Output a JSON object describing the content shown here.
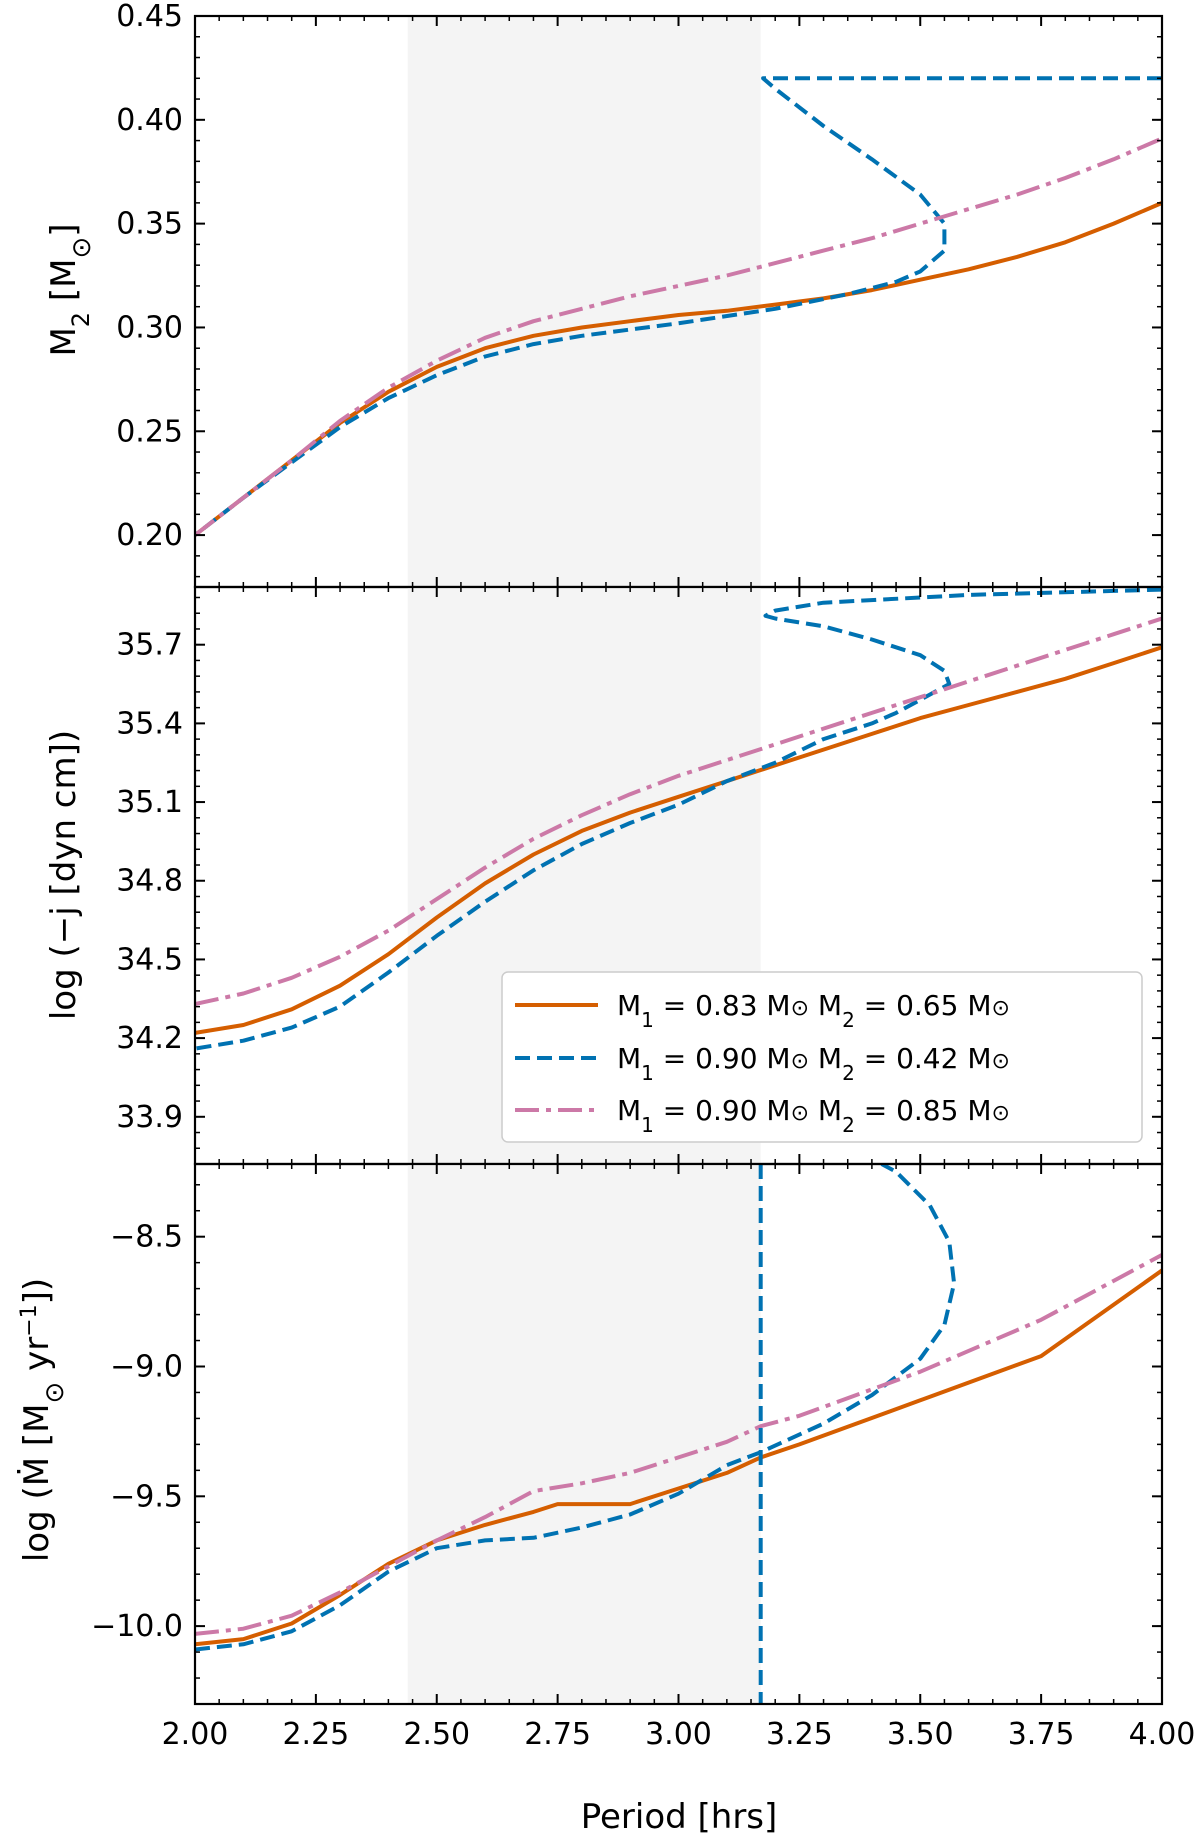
{
  "chart_data": {
    "type": "line",
    "shared_x": {
      "label": "Period [hrs]",
      "xlim": [
        2.0,
        4.0
      ],
      "ticks": [
        2.0,
        2.25,
        2.5,
        2.75,
        3.0,
        3.25,
        3.5,
        3.75,
        4.0
      ],
      "tick_labels": [
        "2.00",
        "2.25",
        "2.50",
        "2.75",
        "3.00",
        "3.25",
        "3.50",
        "3.75",
        "4.00"
      ]
    },
    "shaded_band": {
      "x": [
        2.44,
        3.17
      ],
      "color": "#f4f4f4"
    },
    "colors": {
      "s1": "#d55e00",
      "s2": "#0072b2",
      "s3": "#cc79a7"
    },
    "legend": {
      "location": "lower-right of middle panel",
      "entries": [
        {
          "pre": "M",
          "sub1": "1",
          "mid": " = 0.83 M",
          "sun1": "⊙",
          "m2": " M",
          "sub2": "2",
          "val2": " = 0.65 M",
          "sun2": "⊙"
        },
        {
          "pre": "M",
          "sub1": "1",
          "mid": " = 0.90 M",
          "sun1": "⊙",
          "m2": " M",
          "sub2": "2",
          "val2": " = 0.42 M",
          "sun2": "⊙"
        },
        {
          "pre": "M",
          "sub1": "1",
          "mid": " = 0.90 M",
          "sun1": "⊙",
          "m2": " M",
          "sub2": "2",
          "val2": " = 0.85 M",
          "sun2": "⊙"
        }
      ]
    },
    "panels": [
      {
        "id": "mass",
        "ylabel": {
          "a": "M",
          "sub": "2",
          "b": " [M",
          "sun": "⊙",
          "c": "]"
        },
        "ylim": [
          0.175,
          0.45
        ],
        "yticks": [
          0.2,
          0.25,
          0.3,
          0.35,
          0.4,
          0.45
        ],
        "ytick_labels": [
          "0.20",
          "0.25",
          "0.30",
          "0.35",
          "0.40",
          "0.45"
        ],
        "series": [
          {
            "name": "M1 = 0.83, M2 = 0.65",
            "style": "solid",
            "points": [
              [
                2.0,
                0.2
              ],
              [
                2.1,
                0.218
              ],
              [
                2.2,
                0.236
              ],
              [
                2.3,
                0.254
              ],
              [
                2.4,
                0.269
              ],
              [
                2.5,
                0.281
              ],
              [
                2.6,
                0.29
              ],
              [
                2.7,
                0.296
              ],
              [
                2.8,
                0.3
              ],
              [
                2.9,
                0.303
              ],
              [
                3.0,
                0.306
              ],
              [
                3.1,
                0.308
              ],
              [
                3.2,
                0.311
              ],
              [
                3.3,
                0.314
              ],
              [
                3.4,
                0.318
              ],
              [
                3.5,
                0.323
              ],
              [
                3.6,
                0.328
              ],
              [
                3.7,
                0.334
              ],
              [
                3.8,
                0.341
              ],
              [
                3.9,
                0.35
              ],
              [
                4.0,
                0.36
              ]
            ]
          },
          {
            "name": "M1 = 0.90, M2 = 0.42",
            "style": "dashed",
            "points": [
              [
                4.0,
                0.42
              ],
              [
                3.175,
                0.42
              ],
              [
                3.2,
                0.415
              ],
              [
                3.3,
                0.397
              ],
              [
                3.4,
                0.381
              ],
              [
                3.5,
                0.364
              ],
              [
                3.55,
                0.35
              ],
              [
                3.55,
                0.337
              ],
              [
                3.5,
                0.327
              ],
              [
                3.45,
                0.322
              ],
              [
                3.35,
                0.316
              ],
              [
                3.2,
                0.309
              ],
              [
                3.0,
                0.302
              ],
              [
                2.8,
                0.296
              ],
              [
                2.7,
                0.292
              ],
              [
                2.6,
                0.286
              ],
              [
                2.5,
                0.277
              ],
              [
                2.4,
                0.266
              ],
              [
                2.3,
                0.252
              ],
              [
                2.2,
                0.235
              ],
              [
                2.1,
                0.218
              ],
              [
                2.0,
                0.2
              ]
            ]
          },
          {
            "name": "M1 = 0.90, M2 = 0.85",
            "style": "dashdot",
            "points": [
              [
                2.0,
                0.2
              ],
              [
                2.1,
                0.218
              ],
              [
                2.2,
                0.236
              ],
              [
                2.3,
                0.255
              ],
              [
                2.4,
                0.271
              ],
              [
                2.5,
                0.284
              ],
              [
                2.6,
                0.295
              ],
              [
                2.7,
                0.303
              ],
              [
                2.8,
                0.309
              ],
              [
                2.9,
                0.315
              ],
              [
                3.0,
                0.32
              ],
              [
                3.1,
                0.325
              ],
              [
                3.2,
                0.331
              ],
              [
                3.3,
                0.337
              ],
              [
                3.4,
                0.343
              ],
              [
                3.5,
                0.35
              ],
              [
                3.6,
                0.357
              ],
              [
                3.7,
                0.364
              ],
              [
                3.8,
                0.372
              ],
              [
                3.9,
                0.381
              ],
              [
                4.0,
                0.391
              ]
            ]
          }
        ]
      },
      {
        "id": "torque",
        "ylabel": {
          "text": "log (−j̇ [dyn cm])"
        },
        "ylim": [
          33.72,
          35.92
        ],
        "yticks": [
          33.9,
          34.2,
          34.5,
          34.8,
          35.1,
          35.4,
          35.7
        ],
        "ytick_labels": [
          "33.9",
          "34.2",
          "34.5",
          "34.8",
          "35.1",
          "35.4",
          "35.7"
        ],
        "series": [
          {
            "name": "M1 = 0.83, M2 = 0.65",
            "style": "solid",
            "points": [
              [
                2.0,
                34.22
              ],
              [
                2.1,
                34.25
              ],
              [
                2.2,
                34.31
              ],
              [
                2.3,
                34.4
              ],
              [
                2.4,
                34.52
              ],
              [
                2.5,
                34.66
              ],
              [
                2.6,
                34.79
              ],
              [
                2.7,
                34.9
              ],
              [
                2.8,
                34.99
              ],
              [
                2.9,
                35.06
              ],
              [
                3.0,
                35.12
              ],
              [
                3.1,
                35.18
              ],
              [
                3.2,
                35.24
              ],
              [
                3.3,
                35.3
              ],
              [
                3.4,
                35.36
              ],
              [
                3.5,
                35.42
              ],
              [
                3.6,
                35.47
              ],
              [
                3.7,
                35.52
              ],
              [
                3.8,
                35.57
              ],
              [
                3.9,
                35.63
              ],
              [
                4.0,
                35.69
              ]
            ]
          },
          {
            "name": "M1 = 0.90, M2 = 0.42",
            "style": "dashed",
            "points": [
              [
                4.0,
                35.91
              ],
              [
                3.6,
                35.89
              ],
              [
                3.3,
                35.86
              ],
              [
                3.2,
                35.83
              ],
              [
                3.18,
                35.81
              ],
              [
                3.2,
                35.8
              ],
              [
                3.3,
                35.77
              ],
              [
                3.4,
                35.72
              ],
              [
                3.5,
                35.66
              ],
              [
                3.55,
                35.6
              ],
              [
                3.56,
                35.55
              ],
              [
                3.5,
                35.49
              ],
              [
                3.45,
                35.44
              ],
              [
                3.4,
                35.4
              ],
              [
                3.3,
                35.34
              ],
              [
                3.2,
                35.25
              ],
              [
                3.1,
                35.18
              ],
              [
                3.0,
                35.09
              ],
              [
                2.9,
                35.02
              ],
              [
                2.8,
                34.94
              ],
              [
                2.7,
                34.84
              ],
              [
                2.6,
                34.72
              ],
              [
                2.5,
                34.59
              ],
              [
                2.4,
                34.45
              ],
              [
                2.3,
                34.32
              ],
              [
                2.2,
                34.24
              ],
              [
                2.1,
                34.19
              ],
              [
                2.0,
                34.16
              ]
            ]
          },
          {
            "name": "M1 = 0.90, M2 = 0.85",
            "style": "dashdot",
            "points": [
              [
                2.0,
                34.33
              ],
              [
                2.1,
                34.37
              ],
              [
                2.2,
                34.43
              ],
              [
                2.3,
                34.51
              ],
              [
                2.4,
                34.61
              ],
              [
                2.5,
                34.73
              ],
              [
                2.6,
                34.85
              ],
              [
                2.7,
                34.96
              ],
              [
                2.8,
                35.05
              ],
              [
                2.9,
                35.13
              ],
              [
                3.0,
                35.2
              ],
              [
                3.1,
                35.26
              ],
              [
                3.2,
                35.32
              ],
              [
                3.3,
                35.38
              ],
              [
                3.4,
                35.44
              ],
              [
                3.5,
                35.5
              ],
              [
                3.6,
                35.56
              ],
              [
                3.7,
                35.62
              ],
              [
                3.8,
                35.68
              ],
              [
                3.9,
                35.74
              ],
              [
                4.0,
                35.8
              ]
            ]
          }
        ]
      },
      {
        "id": "mdot",
        "ylabel": {
          "a": "log (Ṁ [M",
          "sun": "⊙",
          "b": " yr",
          "sup": "−1",
          "c": "])"
        },
        "ylim": [
          -10.3,
          -8.22
        ],
        "yticks": [
          -10.0,
          -9.5,
          -9.0,
          -8.5
        ],
        "ytick_labels": [
          "−10.0",
          "−9.5",
          "−9.0",
          "−8.5"
        ],
        "series": [
          {
            "name": "M1 = 0.83, M2 = 0.65",
            "style": "solid",
            "points": [
              [
                2.0,
                -10.07
              ],
              [
                2.1,
                -10.05
              ],
              [
                2.2,
                -9.99
              ],
              [
                2.3,
                -9.88
              ],
              [
                2.4,
                -9.76
              ],
              [
                2.5,
                -9.67
              ],
              [
                2.6,
                -9.61
              ],
              [
                2.7,
                -9.56
              ],
              [
                2.75,
                -9.53
              ],
              [
                2.8,
                -9.53
              ],
              [
                2.9,
                -9.53
              ],
              [
                3.0,
                -9.47
              ],
              [
                3.1,
                -9.41
              ],
              [
                3.17,
                -9.35
              ],
              [
                3.25,
                -9.3
              ],
              [
                3.5,
                -9.13
              ],
              [
                3.75,
                -8.96
              ],
              [
                4.0,
                -8.63
              ]
            ]
          },
          {
            "name": "M1 = 0.90, M2 = 0.42",
            "style": "dashed",
            "points": [
              [
                2.0,
                -10.09
              ],
              [
                2.1,
                -10.07
              ],
              [
                2.2,
                -10.02
              ],
              [
                2.3,
                -9.92
              ],
              [
                2.4,
                -9.79
              ],
              [
                2.5,
                -9.7
              ],
              [
                2.6,
                -9.67
              ],
              [
                2.7,
                -9.66
              ],
              [
                2.8,
                -9.62
              ],
              [
                2.9,
                -9.57
              ],
              [
                3.0,
                -9.49
              ],
              [
                3.1,
                -9.38
              ],
              [
                3.17,
                -9.33
              ],
              [
                3.3,
                -9.22
              ],
              [
                3.4,
                -9.11
              ],
              [
                3.5,
                -8.97
              ],
              [
                3.55,
                -8.84
              ],
              [
                3.57,
                -8.68
              ],
              [
                3.56,
                -8.52
              ],
              [
                3.52,
                -8.38
              ],
              [
                3.45,
                -8.25
              ],
              [
                3.42,
                -8.22
              ]
            ]
          },
          {
            "name": "M1 = 0.90, M2 = 0.85 (dash-dot)",
            "style": "dashdot",
            "points": [
              [
                2.0,
                -10.03
              ],
              [
                2.1,
                -10.01
              ],
              [
                2.2,
                -9.96
              ],
              [
                2.3,
                -9.87
              ],
              [
                2.4,
                -9.77
              ],
              [
                2.5,
                -9.67
              ],
              [
                2.6,
                -9.58
              ],
              [
                2.7,
                -9.48
              ],
              [
                2.8,
                -9.45
              ],
              [
                2.9,
                -9.41
              ],
              [
                3.0,
                -9.35
              ],
              [
                3.1,
                -9.29
              ],
              [
                3.17,
                -9.23
              ],
              [
                3.25,
                -9.19
              ],
              [
                3.5,
                -9.02
              ],
              [
                3.75,
                -8.82
              ],
              [
                4.0,
                -8.57
              ]
            ]
          }
        ],
        "vertical_line": {
          "x": 3.17,
          "style": "dashed",
          "series": "M1 = 0.90, M2 = 0.42"
        }
      }
    ]
  }
}
